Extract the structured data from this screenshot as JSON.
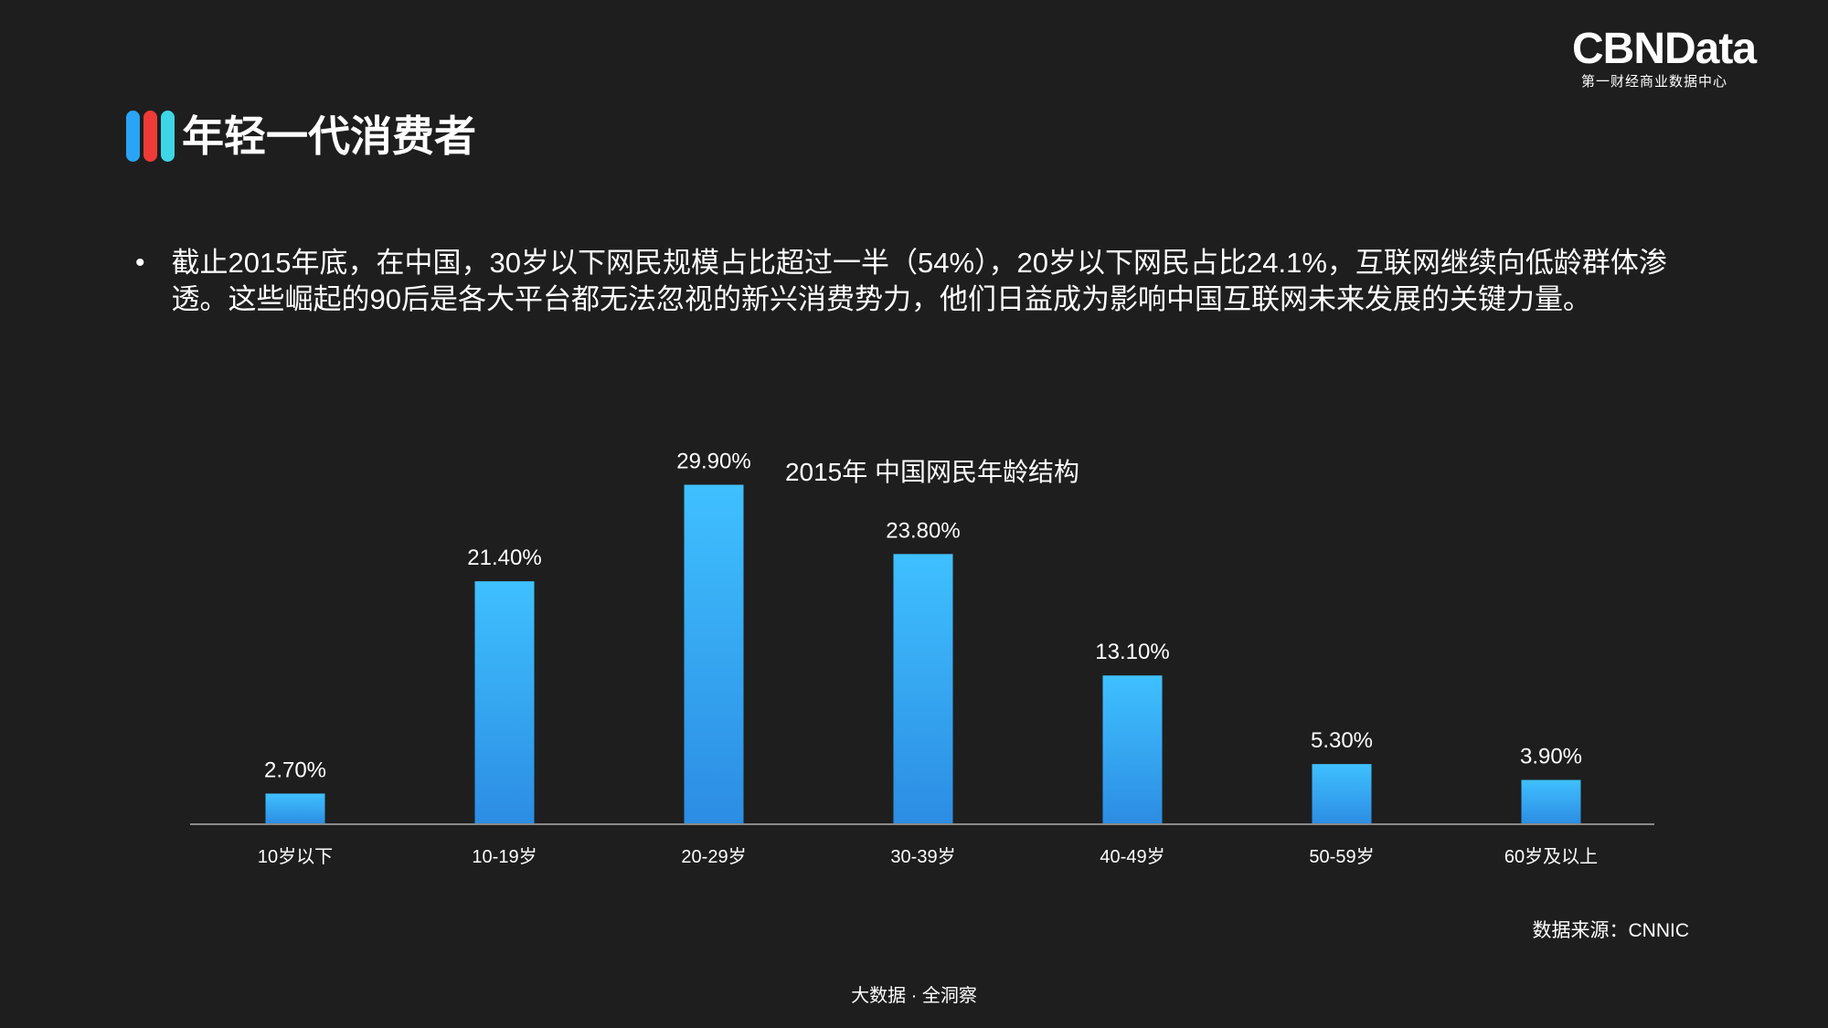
{
  "logo": {
    "main": "CBNData",
    "sub": "第一财经商业数据中心"
  },
  "header": {
    "title": "年轻一代消费者"
  },
  "colors": {
    "bar_top": "#3fc0ff",
    "bar_bottom": "#2c8de3",
    "axis": "#8a8a8a",
    "title_bar_1": "#2aa4f4",
    "title_bar_2": "#ee3b37",
    "title_bar_3": "#3ed6e6"
  },
  "body": {
    "bullet_text": "截止2015年底，在中国，30岁以下网民规模占比超过一半（54%），20岁以下网民占比24.1%，互联网继续向低龄群体渗透。这些崛起的90后是各大平台都无法忽视的新兴消费势力，他们日益成为影响中国互联网未来发展的关键力量。"
  },
  "chart_data": {
    "type": "bar",
    "title": "2015年 中国网民年龄结构",
    "categories": [
      "10岁以下",
      "10-19岁",
      "20-29岁",
      "30-39岁",
      "40-49岁",
      "50-59岁",
      "60岁及以上"
    ],
    "values": [
      2.7,
      21.4,
      29.9,
      23.8,
      13.1,
      5.3,
      3.9
    ],
    "data_labels": [
      "2.70%",
      "21.40%",
      "29.90%",
      "23.80%",
      "13.10%",
      "5.30%",
      "3.90%"
    ],
    "unit": "%",
    "ylim": [
      0,
      33
    ],
    "grid": false,
    "legend": "none"
  },
  "footer": {
    "source": "数据来源：CNNIC",
    "tagline": "大数据 · 全洞察"
  }
}
